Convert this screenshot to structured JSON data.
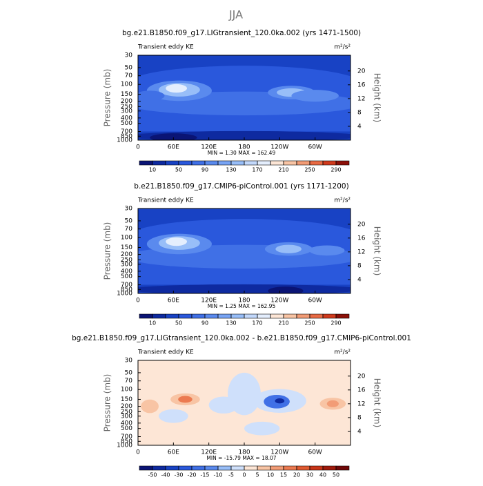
{
  "title": "JJA",
  "chart_data": [
    {
      "type": "contour",
      "title": "bg.e21.B1850.f09_g17.LIGtransient_120.0ka.002 (yrs 1471-1500)",
      "subtitle": "Transient eddy KE",
      "units": "m²/s²",
      "stats": "MIN =    1.30   MAX = 162.49",
      "xlim": [
        0,
        360
      ],
      "xticks": [
        0,
        {
          "value": 60,
          "label": "60E"
        },
        {
          "value": 120,
          "label": "120E"
        },
        180,
        {
          "value": 240,
          "label": "120W"
        },
        {
          "value": 300,
          "label": "60W"
        }
      ],
      "ylabel": "Pressure (mb)",
      "log_y": true,
      "ylim": [
        1000,
        30
      ],
      "yticks": [
        30,
        50,
        70,
        100,
        150,
        200,
        250,
        300,
        400,
        500,
        700,
        850,
        1000
      ],
      "y2label": "Height (km)",
      "y2ticks": [
        4,
        8,
        12,
        16,
        20
      ],
      "colorbar": {
        "levels": [
          10,
          30,
          50,
          70,
          90,
          110,
          130,
          150,
          170,
          190,
          210,
          230,
          250,
          270,
          290
        ],
        "ticks": [
          10,
          50,
          90,
          130,
          170,
          210,
          250,
          290
        ],
        "colors": [
          "#0a1475",
          "#0e2aa0",
          "#1842c4",
          "#2a58dc",
          "#4070e6",
          "#5a8aee",
          "#78a4f4",
          "#98bef8",
          "#c2d8fb",
          "#e4eefd",
          "#fde6d6",
          "#f8c4a4",
          "#f29c76",
          "#e86a44",
          "#d03a1c",
          "#8c1008"
        ]
      }
    },
    {
      "type": "contour",
      "title": "b.e21.B1850.f09_g17.CMIP6-piControl.001 (yrs 1171-1200)",
      "subtitle": "Transient eddy KE",
      "units": "m²/s²",
      "stats": "MIN =    1.25   MAX = 162.95",
      "xlim": [
        0,
        360
      ],
      "xticks": [
        0,
        {
          "value": 60,
          "label": "60E"
        },
        {
          "value": 120,
          "label": "120E"
        },
        180,
        {
          "value": 240,
          "label": "120W"
        },
        {
          "value": 300,
          "label": "60W"
        }
      ],
      "ylabel": "Pressure (mb)",
      "log_y": true,
      "ylim": [
        1000,
        30
      ],
      "yticks": [
        30,
        50,
        70,
        100,
        150,
        200,
        250,
        300,
        400,
        500,
        700,
        850,
        1000
      ],
      "y2label": "Height (km)",
      "y2ticks": [
        4,
        8,
        12,
        16,
        20
      ],
      "colorbar": {
        "levels": [
          10,
          30,
          50,
          70,
          90,
          110,
          130,
          150,
          170,
          190,
          210,
          230,
          250,
          270,
          290
        ],
        "ticks": [
          10,
          50,
          90,
          130,
          170,
          210,
          250,
          290
        ],
        "colors": [
          "#0a1475",
          "#0e2aa0",
          "#1842c4",
          "#2a58dc",
          "#4070e6",
          "#5a8aee",
          "#78a4f4",
          "#98bef8",
          "#c2d8fb",
          "#e4eefd",
          "#fde6d6",
          "#f8c4a4",
          "#f29c76",
          "#e86a44",
          "#d03a1c",
          "#8c1008"
        ]
      }
    },
    {
      "type": "contour",
      "title": "bg.e21.B1850.f09_g17.LIGtransient_120.0ka.002 - b.e21.B1850.f09_g17.CMIP6-piControl.001",
      "subtitle": "Transient eddy KE",
      "units": "m²/s²",
      "stats": "MIN =  -15.79   MAX =   18.07",
      "xlim": [
        0,
        360
      ],
      "xticks": [
        0,
        {
          "value": 60,
          "label": "60E"
        },
        {
          "value": 120,
          "label": "120E"
        },
        180,
        {
          "value": 240,
          "label": "120W"
        },
        {
          "value": 300,
          "label": "60W"
        }
      ],
      "ylabel": "Pressure (mb)",
      "log_y": true,
      "ylim": [
        1000,
        30
      ],
      "yticks": [
        30,
        50,
        70,
        100,
        150,
        200,
        250,
        300,
        400,
        500,
        700,
        850,
        1000
      ],
      "y2label": "Height (km)",
      "y2ticks": [
        4,
        8,
        12,
        16,
        20
      ],
      "colorbar": {
        "levels": [
          -50,
          -40,
          -30,
          -20,
          -15,
          -10,
          -5,
          0,
          5,
          10,
          15,
          20,
          30,
          40,
          50
        ],
        "ticks": [
          -50,
          -40,
          -30,
          -20,
          -15,
          -10,
          -5,
          0,
          5,
          10,
          15,
          20,
          30,
          40,
          50
        ],
        "colors": [
          "#0a1475",
          "#0e2aa0",
          "#1842c4",
          "#2a58dc",
          "#4070e6",
          "#5a8aee",
          "#98bef8",
          "#cfe0fb",
          "#fde6d6",
          "#f8c4a4",
          "#f29c76",
          "#ec7a50",
          "#e05a30",
          "#c83418",
          "#a01a0c",
          "#700808"
        ]
      }
    }
  ]
}
